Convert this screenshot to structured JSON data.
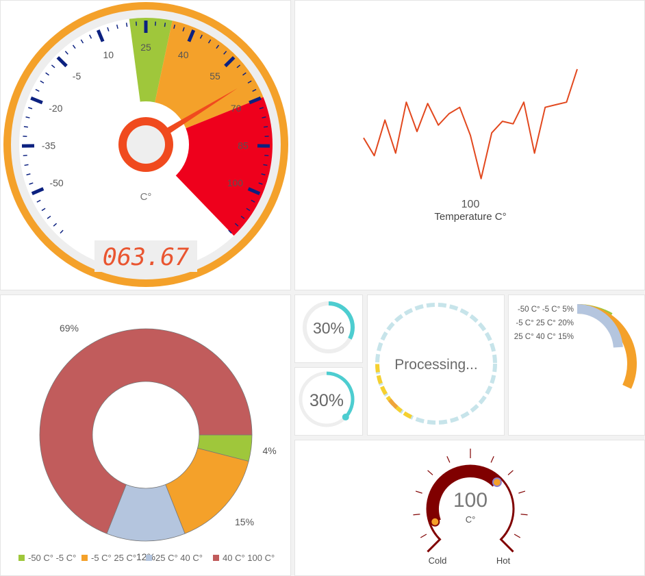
{
  "colors": {
    "orange": "#f4a12a",
    "green": "#9fc73b",
    "red": "#ee001c",
    "needle": "#f04a1e",
    "tick": "#0c2180",
    "bezel": "#eeeeee",
    "line": "#e2481e",
    "teal": "#4dcdd0",
    "track": "#eeeeee",
    "dash": "#c7e4ea",
    "yellow": "#f5d030",
    "amber": "#efa43a",
    "lavender": "#b4c5de",
    "maroon": "#c15c5c",
    "darkred": "#800000",
    "text": "#555555",
    "label": "#444444"
  },
  "gauge": {
    "min": -65,
    "max": 115,
    "start_angle": 224,
    "sweep": 272,
    "major_ticks": [
      -50,
      -35,
      -20,
      -5,
      10,
      25,
      40,
      55,
      70,
      85,
      100
    ],
    "minor_step": 3,
    "bands": [
      {
        "from": 20,
        "to": 33,
        "color": "#9fc73b"
      },
      {
        "from": 33,
        "to": 70,
        "color": "#f4a12a"
      },
      {
        "from": 70,
        "to": 115,
        "color": "#ee001c"
      }
    ],
    "value": 63.67,
    "unit": "C°",
    "display": "063.67"
  },
  "line_chart": {
    "label_value": "100",
    "title": "Temperature C°"
  },
  "donut": {
    "legend_label": "69%"
  },
  "progress_1": {
    "label": "30%",
    "value": 0.3
  },
  "progress_2": {
    "label": "30%",
    "value": 0.3
  },
  "processing": {
    "label": "Processing..."
  },
  "bars": {
    "rows": [
      {
        "name": "-50 C° -5 C°",
        "percent": "5%",
        "value": 5,
        "color": "#9fc73b"
      },
      {
        "name": "-5 C° 25 C°",
        "percent": "20%",
        "value": 20,
        "color": "#f4a12a"
      },
      {
        "name": "25 C° 40 C°",
        "percent": "15%",
        "value": 15,
        "color": "#b4c5de"
      }
    ]
  },
  "thermo": {
    "value": "100",
    "unit": "C°",
    "left_label": "Cold",
    "right_label": "Hot"
  },
  "chart_data": [
    {
      "type": "gauge",
      "title": "",
      "unit": "C°",
      "value": 63.67,
      "tick_labels": [
        "-50",
        "-35",
        "-20",
        "-5",
        "10",
        "25",
        "40",
        "55",
        "70",
        "85",
        "100"
      ],
      "display": "063.67"
    },
    {
      "type": "line",
      "title": "Temperature C°",
      "ymax_label": "100",
      "x": [
        0,
        1,
        2,
        3,
        4,
        5,
        6,
        7,
        8,
        9,
        10,
        11,
        12,
        13,
        14,
        15,
        16,
        17,
        18,
        19,
        20
      ],
      "values": [
        45,
        31,
        59,
        33,
        73,
        50,
        72,
        55,
        64,
        69,
        47,
        13,
        49,
        58,
        56,
        73,
        33,
        69,
        71,
        73,
        99
      ],
      "series_name": "Temperature"
    },
    {
      "type": "pie",
      "title": "",
      "categories": [
        "-50 C° -5 C°",
        "-5 C° 25 C°",
        "25 C° 40 C°",
        "40 C° 100 C°"
      ],
      "values": [
        4,
        15,
        12,
        69
      ],
      "labels": [
        "4%",
        "15%",
        "12%",
        "69%"
      ],
      "colors": [
        "#9fc73b",
        "#f4a12a",
        "#b4c5de",
        "#c15c5c"
      ],
      "legend": "bottom"
    },
    {
      "type": "bar",
      "orientation": "radial",
      "categories": [
        "-50 C° -5 C°",
        "-5 C° 25 C°",
        "25 C° 40 C°"
      ],
      "values": [
        5,
        20,
        15
      ],
      "labels": [
        "5%",
        "20%",
        "15%"
      ]
    }
  ]
}
